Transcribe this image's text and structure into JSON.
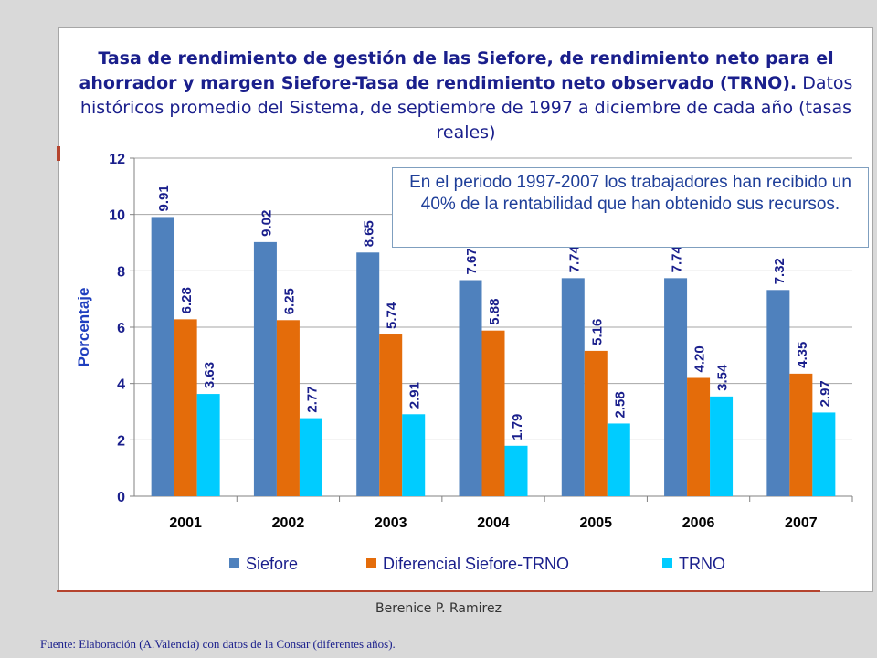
{
  "title_part1": "Tasa de rendimiento de gestión de las Siefore, de rendimiento neto para el ahorrador y margen Siefore-Tasa de rendimiento neto observado (TRNO).",
  "title_part2": "Datos históricos promedio del Sistema, de septiembre de 1997 a diciembre de cada año (tasas reales)",
  "annotation": "En el periodo 1997-2007 los trabajadores han recibido un 40% de la rentabilidad que han obtenido sus recursos.",
  "author": "Berenice P. Ramirez",
  "source": "Fuente: Elaboración (A.Valencia) con datos de la  Consar  (diferentes años).",
  "colors": {
    "siefore": "#4f81bd",
    "diferencial": "#e46c0a",
    "trno": "#00ccff",
    "axis_text": "#1a1f8c",
    "y_label": "#1f3fbf"
  },
  "chart_data": {
    "type": "bar",
    "title": "Tasa de rendimiento de gestión de las Siefore, de rendimiento neto para el ahorrador y margen Siefore-Tasa de rendimiento neto observado (TRNO). Datos históricos promedio del Sistema, de septiembre de 1997 a diciembre de cada año (tasas reales)",
    "xlabel": "",
    "ylabel": "Porcentaje",
    "ylim": [
      0,
      12
    ],
    "yticks": [
      0,
      2,
      4,
      6,
      8,
      10,
      12
    ],
    "grid": true,
    "legend": "bottom",
    "categories": [
      "2001",
      "2002",
      "2003",
      "2004",
      "2005",
      "2006",
      "2007"
    ],
    "series": [
      {
        "name": "Siefore",
        "values": [
          9.91,
          9.02,
          8.65,
          7.67,
          7.74,
          7.74,
          7.32
        ]
      },
      {
        "name": "Diferencial Siefore-TRNO",
        "values": [
          6.28,
          6.25,
          5.74,
          5.88,
          5.16,
          4.2,
          4.35
        ]
      },
      {
        "name": "TRNO",
        "values": [
          3.63,
          2.77,
          2.91,
          1.79,
          2.58,
          3.54,
          2.97
        ]
      }
    ]
  }
}
